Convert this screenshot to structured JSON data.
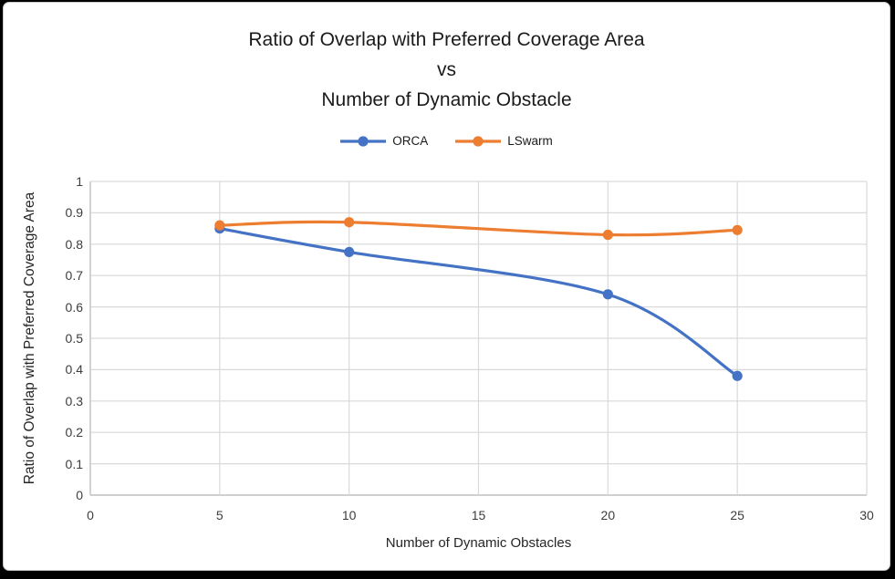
{
  "chart_data": {
    "type": "line",
    "title": "Ratio of Overlap with Preferred Coverage Area vs Number of Dynamic Obstacle",
    "title_lines": [
      "Ratio of Overlap with Preferred Coverage Area",
      "vs",
      "Number of Dynamic Obstacle"
    ],
    "xlabel": "Number of Dynamic Obstacles",
    "ylabel": "Ratio of Overlap with Preferred Coverage Area",
    "xlim": [
      0,
      30
    ],
    "ylim": [
      0,
      1
    ],
    "x_ticks": [
      0,
      5,
      10,
      15,
      20,
      25,
      30
    ],
    "y_ticks": [
      0,
      0.1,
      0.2,
      0.3,
      0.4,
      0.5,
      0.6,
      0.7,
      0.8,
      0.9,
      1
    ],
    "grid": true,
    "smoothed_lines": true,
    "legend_position": "top-center",
    "x": [
      5,
      10,
      20,
      25
    ],
    "series": [
      {
        "name": "ORCA",
        "color": "#4472C4",
        "values": [
          0.85,
          0.775,
          0.64,
          0.38
        ]
      },
      {
        "name": "LSwarm",
        "color": "#ED7D31",
        "values": [
          0.86,
          0.87,
          0.83,
          0.845
        ]
      }
    ],
    "colors": {
      "gridline": "#D9D9D9",
      "axis_line": "#BFBFBF",
      "tick_text": "#3d3d3d",
      "title_text": "#1a1a1a"
    }
  }
}
